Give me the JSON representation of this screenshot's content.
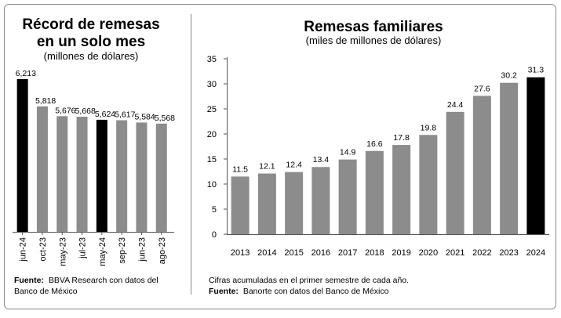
{
  "left": {
    "title_line1": "Récord de remesas",
    "title_line2": "en un solo mes",
    "subtitle": "(millones de dólares)",
    "source_label": "Fuente:",
    "source_text_line1": "BBVA Research con datos del",
    "source_text_line2": "Banco de México"
  },
  "right": {
    "title": "Remesas familiares",
    "subtitle": "(miles de millones de dólares)",
    "note": "Cifras acumuladas en el primer semestre de cada año.",
    "source_label": "Fuente:",
    "source_text": "Banorte con datos del Banco de México"
  },
  "colors": {
    "highlight": "#000000",
    "bar": "#8c8c8c",
    "axis": "#555555",
    "divider": "#888888"
  },
  "chart_data": [
    {
      "type": "bar",
      "title": "Récord de remesas en un solo mes",
      "subtitle": "(millones de dólares)",
      "categories": [
        "jun-24",
        "oct-23",
        "may-23",
        "jul-23",
        "may-24",
        "sep-23",
        "jun-23",
        "ago-23"
      ],
      "values": [
        6213,
        5818,
        5676,
        5668,
        5624,
        5617,
        5584,
        5568
      ],
      "value_labels": [
        "6,213",
        "5,818",
        "5,676",
        "5,668",
        "5,624",
        "5,617",
        "5,584",
        "5,568"
      ],
      "highlighted": [
        "jun-24",
        "may-24"
      ],
      "ylim": [
        4000,
        6600
      ],
      "tick_label_rotation": -90
    },
    {
      "type": "bar",
      "title": "Remesas familiares",
      "subtitle": "(miles de millones de dólares)",
      "categories": [
        "2013",
        "2014",
        "2015",
        "2016",
        "2017",
        "2018",
        "2019",
        "2020",
        "2021",
        "2022",
        "2023",
        "2024"
      ],
      "values": [
        11.5,
        12.1,
        12.4,
        13.4,
        14.9,
        16.6,
        17.8,
        19.8,
        24.4,
        27.6,
        30.2,
        31.3
      ],
      "value_labels": [
        "11.5",
        "12.1",
        "12.4",
        "13.4",
        "14.9",
        "16.6",
        "17.8",
        "19.8",
        "24.4",
        "27.6",
        "30.2",
        "31.3"
      ],
      "highlighted": [
        "2024"
      ],
      "ylim": [
        0,
        35
      ],
      "yticks": [
        0,
        5,
        10,
        15,
        20,
        25,
        30,
        35
      ]
    }
  ]
}
